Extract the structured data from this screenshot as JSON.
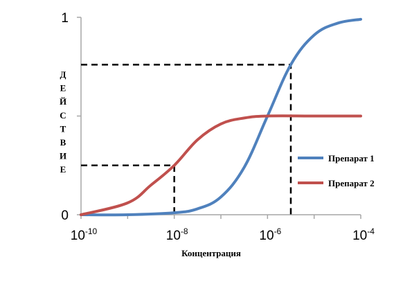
{
  "chart_data": {
    "type": "line",
    "title": "",
    "xlabel": "Концентрация",
    "ylabel": "ДЕЙСТВИЕ",
    "x_scale": "log",
    "xlim": [
      1e-10,
      0.0001
    ],
    "ylim": [
      0,
      1
    ],
    "x_ticks": [
      {
        "base": "10",
        "exp": "-10"
      },
      {
        "base": "10",
        "exp": "-8"
      },
      {
        "base": "10",
        "exp": "-6"
      },
      {
        "base": "10",
        "exp": "-4"
      }
    ],
    "y_ticks": [
      "0",
      "1"
    ],
    "grid": false,
    "legend_position": "right",
    "series": [
      {
        "name": "Препарат 1",
        "color": "#4F81BD",
        "x": [
          1e-10,
          1e-09,
          1e-08,
          3.16e-08,
          1e-07,
          3.16e-07,
          1e-06,
          3.16e-06,
          1e-05,
          3.16e-05,
          0.0001
        ],
        "y": [
          0.0,
          0.0,
          0.01,
          0.03,
          0.09,
          0.24,
          0.5,
          0.76,
          0.91,
          0.97,
          0.99
        ]
      },
      {
        "name": "Препарат 2",
        "color": "#C0504D",
        "x": [
          1e-10,
          1e-09,
          3.16e-09,
          1e-08,
          3.16e-08,
          1e-07,
          3.16e-07,
          1e-06,
          1e-05,
          0.0001
        ],
        "y": [
          0.0,
          0.06,
          0.15,
          0.25,
          0.38,
          0.46,
          0.49,
          0.5,
          0.5,
          0.5
        ]
      }
    ],
    "reference_lines": [
      {
        "x": 1e-08,
        "y": 0.25
      },
      {
        "x": 3.16e-06,
        "y": 0.76
      }
    ]
  }
}
